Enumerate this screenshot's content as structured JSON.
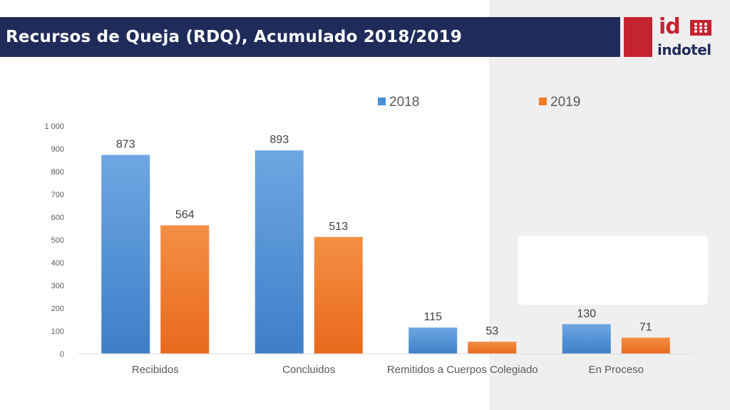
{
  "header": {
    "title": "Recursos de Queja (RDQ), Acumulado 2018/2019",
    "logo_top": "id",
    "logo_bottom": "indotel"
  },
  "colors": {
    "header_bg": "#1f2c5a",
    "accent_red": "#c62330",
    "series_2018": "#4a8fd6",
    "series_2019": "#f07d2a"
  },
  "chart_data": {
    "type": "bar",
    "title": "",
    "xlabel": "",
    "ylabel": "",
    "ylim": [
      0,
      1000
    ],
    "yticks": [
      0,
      100,
      200,
      300,
      400,
      500,
      600,
      700,
      800,
      900,
      1000
    ],
    "ytick_labels": [
      "0",
      "100",
      "200",
      "300",
      "400",
      "500",
      "600",
      "700",
      "800",
      "900",
      "1 000"
    ],
    "grid": false,
    "legend_position": "top-right",
    "categories": [
      "Recibidos",
      "Concluidos",
      "Remitidos a Cuerpos Colegiado",
      "En Proceso"
    ],
    "series": [
      {
        "name": "2018",
        "values": [
          873,
          893,
          115,
          130
        ],
        "color": "#4a8fd6"
      },
      {
        "name": "2019",
        "values": [
          564,
          513,
          53,
          71
        ],
        "color": "#f07d2a"
      }
    ]
  }
}
